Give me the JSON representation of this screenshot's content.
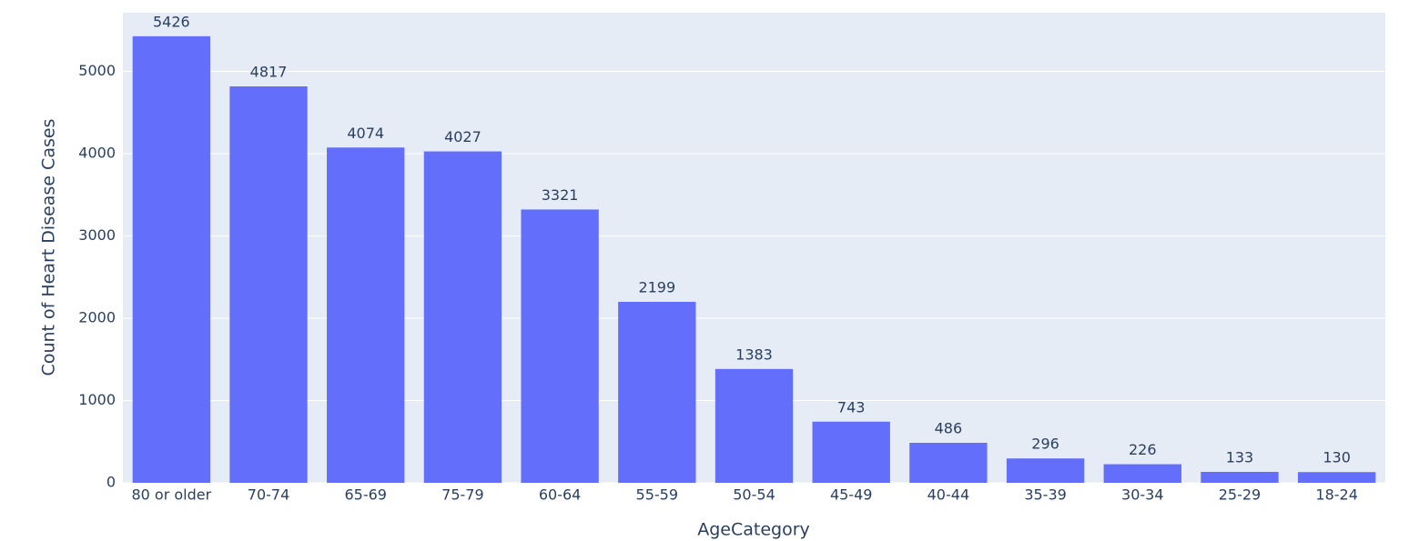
{
  "chart_data": {
    "type": "bar",
    "x_label": "AgeCategory",
    "y_label": "Count of Heart Disease Cases",
    "categories": [
      "80 or older",
      "70-74",
      "65-69",
      "75-79",
      "60-64",
      "55-59",
      "50-54",
      "45-49",
      "40-44",
      "35-39",
      "30-34",
      "25-29",
      "18-24"
    ],
    "values": [
      5426,
      4817,
      4074,
      4027,
      3321,
      2199,
      1383,
      743,
      486,
      296,
      226,
      133,
      130
    ],
    "color": "#636efa",
    "ylim": [
      0,
      5712
    ],
    "yticks": [
      0,
      1000,
      2000,
      3000,
      4000,
      5000
    ],
    "grid": true
  }
}
